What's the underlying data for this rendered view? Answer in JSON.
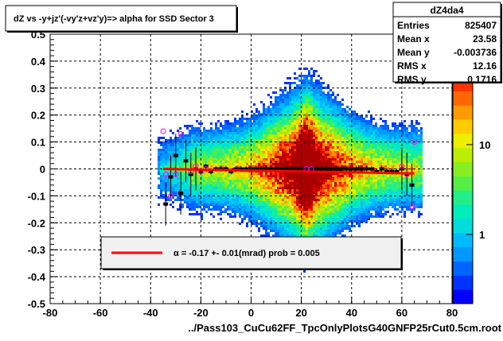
{
  "chart_data": {
    "type": "heatmap",
    "title": "dZ vs -y+jz'(-vy'z+vz'y)=> alpha for SSD Sector 3",
    "xlabel": "../Pass103_CuCu62FF_TpcOnlyPlotsG40GNFP25rCut0.5cm.root",
    "ylabel": "",
    "xlim": [
      -80,
      80
    ],
    "ylim": [
      -0.5,
      0.5
    ],
    "x_ticks": [
      "-80",
      "-60",
      "-40",
      "-20",
      "0",
      "20",
      "40",
      "60",
      "80"
    ],
    "y_ticks": [
      "-0.5",
      "-0.4",
      "-0.3",
      "-0.2",
      "-0.1",
      "0",
      "0.1",
      "0.2",
      "0.3",
      "0.4",
      "0.5"
    ],
    "grid": true,
    "colorbar": {
      "scale": "log",
      "labels": [
        "1",
        "10",
        "10"
      ],
      "exponent_label": "2",
      "colors": [
        "#0000ff",
        "#0033ff",
        "#0066ff",
        "#0099ff",
        "#00bbff",
        "#00dddd",
        "#00eebb",
        "#22ee88",
        "#55ee44",
        "#88ee22",
        "#bbee00",
        "#eeee00",
        "#ffcc00",
        "#ff9900",
        "#ff6600",
        "#ff3300",
        "#ee0000",
        "#cc0000",
        "#aa0000"
      ]
    },
    "stats": {
      "name": "dZ4da4",
      "rows": [
        {
          "label": "Entries",
          "value": "825407"
        },
        {
          "label": "Mean x",
          "value": "23.58"
        },
        {
          "label": "Mean y",
          "value": "-0.003736"
        },
        {
          "label": "RMS x",
          "value": "12.16"
        },
        {
          "label": "RMS y",
          "value": "0.1716"
        }
      ]
    },
    "fit": {
      "x_range": [
        -35,
        65
      ],
      "y_values": [
        0.0,
        -0.017
      ],
      "color": "#ff0000",
      "legend_text": "α =    -0.17 +-     0.01(mrad) prob = 0.005"
    },
    "profile_points": {
      "x": [
        -34,
        -32,
        -30,
        -28,
        -26,
        -24,
        -22,
        -20,
        -18,
        -16,
        -14,
        -12,
        -10,
        -8,
        -6,
        -4,
        -2,
        0,
        2,
        4,
        6,
        8,
        10,
        12,
        14,
        16,
        18,
        20,
        22,
        24,
        26,
        28,
        30,
        32,
        34,
        36,
        38,
        40,
        42,
        44,
        46,
        48,
        50,
        52,
        54,
        56,
        58,
        60,
        62,
        64
      ],
      "y": [
        -0.13,
        -0.03,
        0.05,
        -0.09,
        0.03,
        -0.02,
        0.0,
        -0.01,
        0.01,
        -0.01,
        0.0,
        0.0,
        0.0,
        -0.01,
        0.0,
        0.0,
        0.0,
        0.0,
        0.0,
        0.0,
        0.0,
        0.0,
        0.0,
        0.0,
        0.0,
        0.0,
        0.0,
        0.0,
        0.0,
        0.0,
        0.0,
        0.0,
        0.0,
        0.0,
        0.0,
        0.0,
        0.0,
        0.0,
        0.0,
        0.0,
        0.0,
        0.0,
        -0.01,
        0.0,
        -0.01,
        -0.01,
        -0.01,
        0.0,
        -0.02,
        -0.06
      ],
      "color": "#000000"
    },
    "marker_points": {
      "x": [
        -35,
        -34,
        -32,
        -30,
        -28,
        -24,
        -22,
        -20,
        -18,
        22,
        24,
        60,
        62,
        64,
        65
      ],
      "y": [
        0.14,
        -0.02,
        -0.1,
        -0.02,
        0.13,
        -0.01,
        0.01,
        -0.01,
        0.0,
        0.0,
        0.0,
        0.01,
        -0.02,
        -0.14,
        0.1
      ],
      "color": "#ff00ff"
    }
  }
}
